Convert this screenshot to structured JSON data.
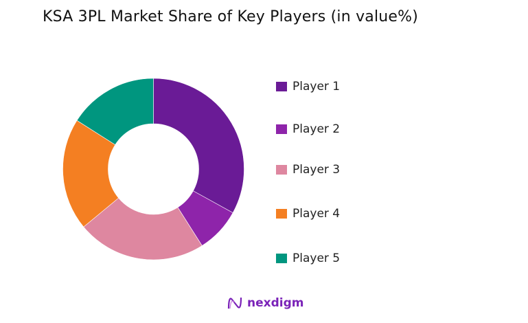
{
  "chart_data": {
    "type": "pie",
    "donut": true,
    "title": "KSA 3PL Market Share of Key Players (in value%)",
    "categories": [
      "Player 1",
      "Player 2",
      "Player 3",
      "Player 4",
      "Player 5"
    ],
    "values": [
      33,
      8,
      23,
      20,
      16
    ],
    "colors": [
      "#6a1b96",
      "#8e24aa",
      "#de87a0",
      "#f47f22",
      "#00967f"
    ],
    "legend_position": "right"
  },
  "logo": {
    "text": "nexdigm",
    "color": "#7a22b8"
  }
}
